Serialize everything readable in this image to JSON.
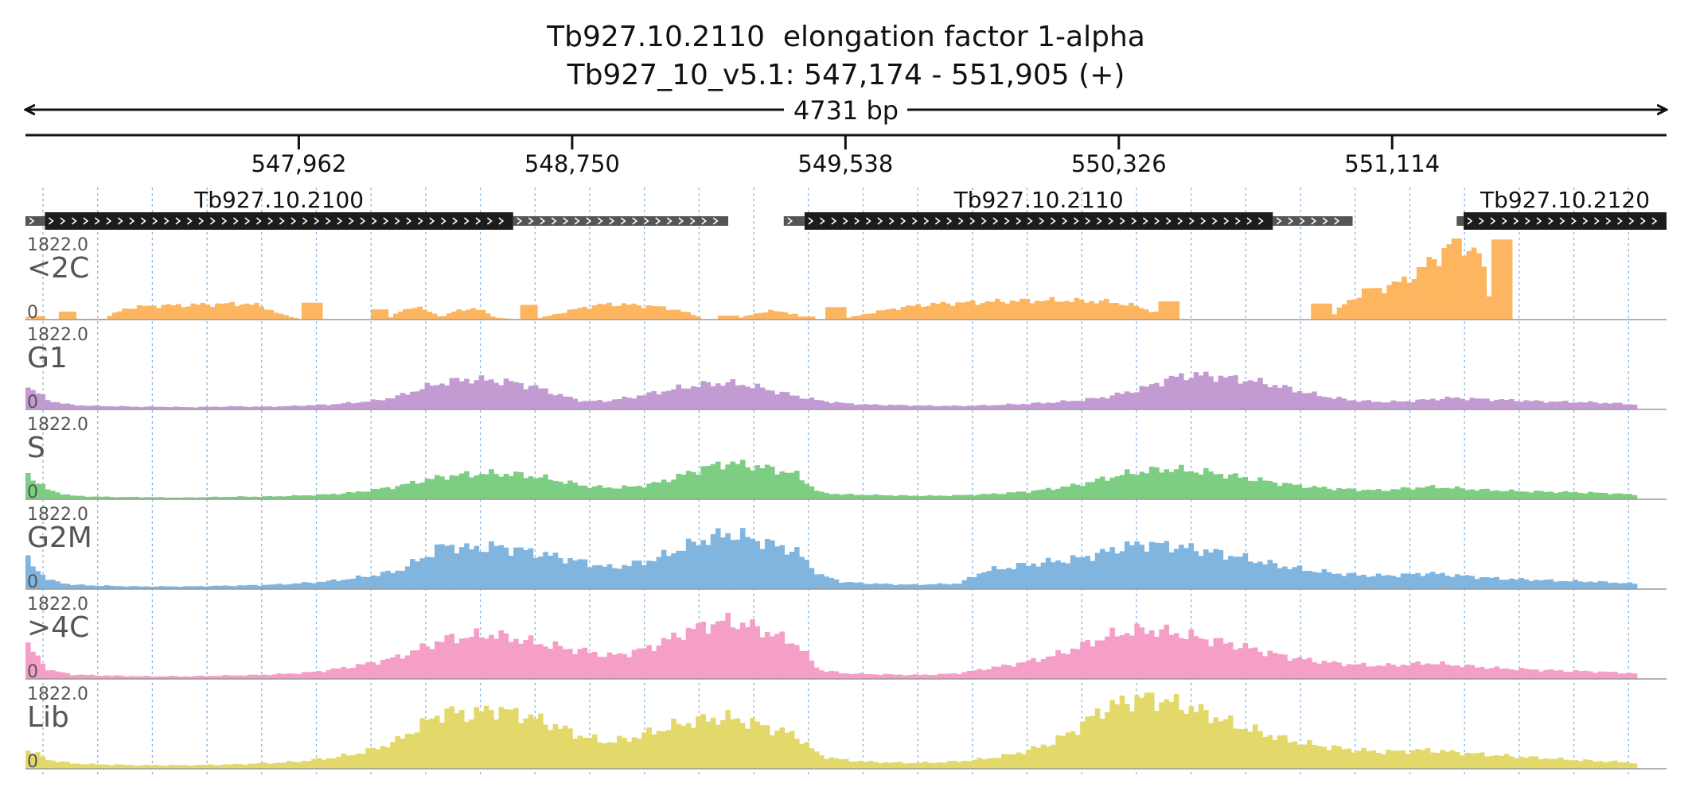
{
  "title": {
    "line1": "Tb927.10.2110  elongation factor 1-alpha",
    "line2": "Tb927_10_v5.1: 547,174 - 551,905 (+)"
  },
  "colors": {
    "text": "#111111",
    "track_label": "#555555",
    "gene_body": "#1c1c1c",
    "utr": "#555555",
    "grid": "#6fa8dc",
    "baseline": "#999999",
    "peak_mark": "#c0392b"
  },
  "chart_data": {
    "type": "area",
    "region": {
      "chromosome": "Tb927_10_v5.1",
      "start": 547174,
      "end": 551905,
      "strand": "+",
      "span_label": "4731 bp"
    },
    "axis_ticks": [
      {
        "pos": 547962,
        "label": "547,962"
      },
      {
        "pos": 548750,
        "label": "548,750"
      },
      {
        "pos": 549538,
        "label": "549,538"
      },
      {
        "pos": 550326,
        "label": "550,326"
      },
      {
        "pos": 551114,
        "label": "551,114"
      }
    ],
    "genes": [
      {
        "name": "Tb927.10.2100",
        "utr5": [
          547174,
          547230
        ],
        "cds": [
          547230,
          548580
        ],
        "utr3": [
          548580,
          549200
        ]
      },
      {
        "name": "Tb927.10.2110",
        "utr5": [
          549360,
          549420
        ],
        "cds": [
          549420,
          550770
        ],
        "utr3": [
          550770,
          551000
        ]
      },
      {
        "name": "Tb927.10.2120",
        "utr5": [
          551300,
          551320
        ],
        "cds": [
          551320,
          551905
        ],
        "utr3": null
      }
    ],
    "tracks": [
      {
        "name": "<2C",
        "max_label": "1822.0",
        "min_label": "0",
        "color": "#fdb55f",
        "ymax": 1822,
        "segments": [
          {
            "start": 547174,
            "end": 547185,
            "profile": [
              60,
              60
            ]
          },
          {
            "start": 547190,
            "end": 547230,
            "profile": [
              80,
              80
            ]
          },
          {
            "start": 547270,
            "end": 547320,
            "profile": [
              180,
              180
            ]
          },
          {
            "start": 547320,
            "end": 547360,
            "profile": [
              15,
              15
            ]
          },
          {
            "start": 547360,
            "end": 547410,
            "profile": [
              20,
              20
            ]
          },
          {
            "start": 547410,
            "end": 547960,
            "profile": [
              60,
              260,
              300,
              320,
              320,
              340,
              350,
              360,
              320,
              130,
              25
            ]
          },
          {
            "start": 547970,
            "end": 548030,
            "profile": [
              380,
              380
            ]
          },
          {
            "start": 548170,
            "end": 548220,
            "profile": [
              230,
              230
            ]
          },
          {
            "start": 548220,
            "end": 548570,
            "profile": [
              20,
              200,
              300,
              180,
              60,
              200,
              250,
              200,
              40,
              20
            ]
          },
          {
            "start": 548600,
            "end": 548650,
            "profile": [
              330,
              330
            ]
          },
          {
            "start": 548650,
            "end": 549120,
            "profile": [
              20,
              150,
              280,
              350,
              330,
              300,
              220,
              60
            ]
          },
          {
            "start": 549170,
            "end": 549230,
            "profile": [
              90,
              90
            ]
          },
          {
            "start": 549230,
            "end": 549400,
            "profile": [
              30,
              120,
              200,
              170,
              120
            ]
          },
          {
            "start": 549400,
            "end": 549450,
            "profile": [
              70,
              70
            ]
          },
          {
            "start": 549480,
            "end": 549540,
            "profile": [
              280,
              280
            ]
          },
          {
            "start": 549540,
            "end": 550440,
            "profile": [
              30,
              150,
              250,
              320,
              360,
              380,
              400,
              420,
              430,
              430,
              420,
              400,
              310,
              150
            ]
          },
          {
            "start": 550440,
            "end": 550500,
            "profile": [
              410,
              410
            ]
          },
          {
            "start": 550880,
            "end": 550940,
            "profile": [
              360,
              360
            ]
          },
          {
            "start": 550940,
            "end": 551400,
            "profile": [
              60,
              350,
              520,
              680,
              700,
              780,
              900,
              1050,
              1300,
              1500,
              1800,
              1650,
              1500,
              300
            ]
          },
          {
            "start": 551400,
            "end": 551460,
            "profile": [
              1800,
              1800
            ]
          }
        ]
      },
      {
        "name": "G1",
        "max_label": "1822.0",
        "min_label": "0",
        "color": "#c39bd3",
        "ymax": 1822,
        "segments": [
          {
            "start": 547174,
            "end": 551820,
            "profile": [
              550,
              200,
              100,
              80,
              70,
              60,
              60,
              50,
              60,
              70,
              60,
              70,
              90,
              110,
              150,
              200,
              300,
              480,
              620,
              680,
              650,
              600,
              480,
              300,
              180,
              200,
              280,
              380,
              480,
              560,
              600,
              540,
              420,
              300,
              200,
              140,
              110,
              100,
              90,
              80,
              80,
              90,
              110,
              130,
              160,
              200,
              260,
              360,
              500,
              700,
              780,
              740,
              680,
              600,
              480,
              360,
              260,
              200,
              170,
              180,
              220,
              260,
              240,
              220,
              200,
              180,
              170,
              160,
              140,
              110
            ]
          }
        ]
      },
      {
        "name": "S",
        "max_label": "1822.0",
        "min_label": "0",
        "color": "#7dce82",
        "ymax": 1822,
        "segments": [
          {
            "start": 547174,
            "end": 551820,
            "profile": [
              600,
              200,
              80,
              60,
              50,
              50,
              40,
              40,
              50,
              60,
              60,
              70,
              90,
              110,
              150,
              220,
              300,
              420,
              520,
              560,
              580,
              560,
              500,
              400,
              300,
              260,
              280,
              360,
              520,
              700,
              820,
              760,
              680,
              560,
              150,
              110,
              100,
              90,
              80,
              80,
              90,
              110,
              140,
              180,
              240,
              320,
              440,
              560,
              640,
              680,
              640,
              580,
              500,
              420,
              340,
              280,
              240,
              220,
              200,
              240,
              280,
              260,
              220,
              200,
              180,
              170,
              160,
              150,
              130,
              100
            ]
          }
        ]
      },
      {
        "name": "G2M",
        "max_label": "1822.0",
        "min_label": "0",
        "color": "#80b5e0",
        "ymax": 1822,
        "segments": [
          {
            "start": 547174,
            "end": 551820,
            "profile": [
              700,
              200,
              100,
              80,
              70,
              60,
              60,
              60,
              70,
              80,
              90,
              110,
              140,
              180,
              240,
              320,
              420,
              700,
              1000,
              900,
              960,
              900,
              800,
              700,
              600,
              480,
              560,
              680,
              900,
              1100,
              1250,
              1150,
              1000,
              850,
              320,
              160,
              130,
              110,
              100,
              110,
              130,
              400,
              480,
              560,
              620,
              680,
              800,
              950,
              1020,
              980,
              900,
              820,
              720,
              600,
              500,
              420,
              360,
              320,
              300,
              320,
              360,
              320,
              280,
              240,
              220,
              200,
              180,
              170,
              150,
              120
            ]
          }
        ]
      },
      {
        "name": ">4C",
        "max_label": "1822.0",
        "min_label": "0",
        "color": "#f59ec6",
        "ymax": 1822,
        "segments": [
          {
            "start": 547174,
            "end": 551820,
            "profile": [
              800,
              200,
              100,
              80,
              70,
              60,
              60,
              60,
              70,
              80,
              90,
              110,
              140,
              200,
              280,
              380,
              500,
              700,
              900,
              950,
              1000,
              900,
              800,
              700,
              620,
              520,
              600,
              760,
              1000,
              1200,
              1300,
              1200,
              1000,
              800,
              200,
              130,
              110,
              100,
              90,
              100,
              130,
              220,
              300,
              400,
              520,
              700,
              900,
              1050,
              1100,
              1050,
              950,
              850,
              740,
              620,
              500,
              420,
              360,
              320,
              300,
              320,
              360,
              320,
              280,
              240,
              220,
              200,
              180,
              170,
              150,
              120
            ]
          }
        ]
      },
      {
        "name": "Lib",
        "max_label": "1822.0",
        "min_label": "0",
        "color": "#e3d96a",
        "ymax": 1822,
        "segments": [
          {
            "start": 547174,
            "end": 551820,
            "profile": [
              450,
              200,
              120,
              100,
              90,
              80,
              80,
              80,
              90,
              100,
              120,
              140,
              180,
              240,
              320,
              450,
              650,
              1000,
              1300,
              1200,
              1350,
              1250,
              1100,
              900,
              700,
              600,
              700,
              850,
              1000,
              1100,
              1150,
              1050,
              900,
              750,
              300,
              200,
              160,
              140,
              130,
              140,
              170,
              220,
              300,
              420,
              600,
              900,
              1300,
              1500,
              1600,
              1500,
              1350,
              1150,
              950,
              800,
              650,
              550,
              480,
              420,
              380,
              400,
              420,
              380,
              340,
              300,
              270,
              240,
              210,
              180,
              160,
              130
            ]
          }
        ]
      }
    ]
  }
}
